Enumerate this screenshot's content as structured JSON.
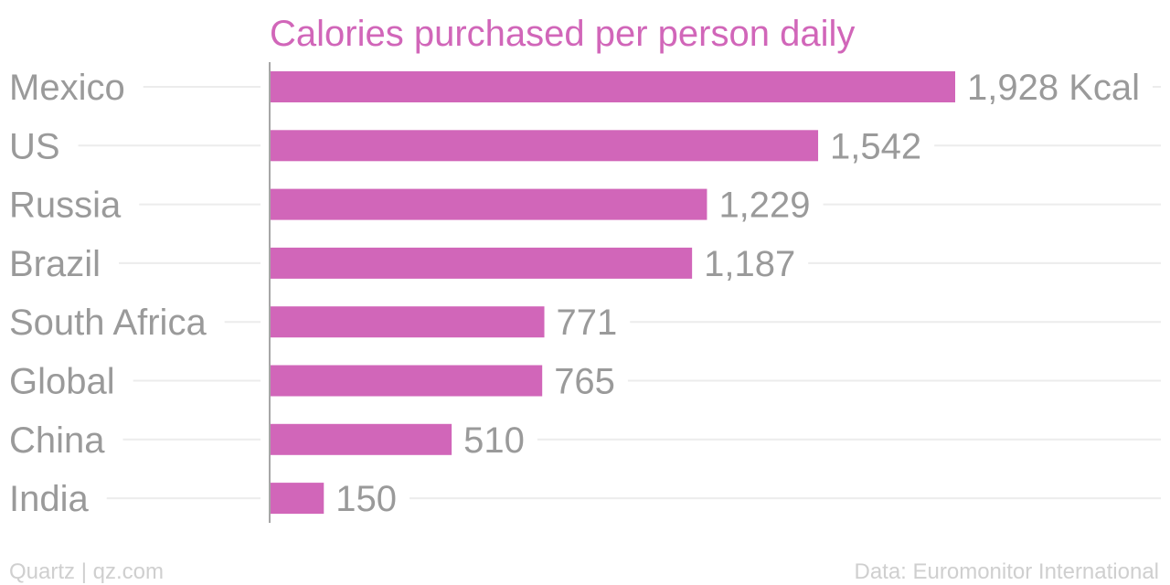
{
  "chart_data": {
    "type": "bar",
    "orientation": "horizontal",
    "title": "Calories purchased per person daily",
    "categories": [
      "Mexico",
      "US",
      "Russia",
      "Brazil",
      "South Africa",
      "Global",
      "China",
      "India"
    ],
    "values": [
      1928,
      1542,
      1229,
      1187,
      771,
      765,
      510,
      150
    ],
    "value_labels": [
      "1,928 Kcal",
      "1,542",
      "1,229",
      "1,187",
      "771",
      "765",
      "510",
      "150"
    ],
    "unit": "Kcal",
    "xlim": [
      0,
      2000
    ],
    "grid": false,
    "legend": "none"
  },
  "footer": {
    "left": "Quartz | qz.com",
    "right": "Data: Euromonitor International"
  },
  "colors": {
    "bar": "#d166b9",
    "title": "#d166b9",
    "label": "#9a9a9a",
    "guide": "#ececec",
    "footer": "#cfcfcf"
  }
}
